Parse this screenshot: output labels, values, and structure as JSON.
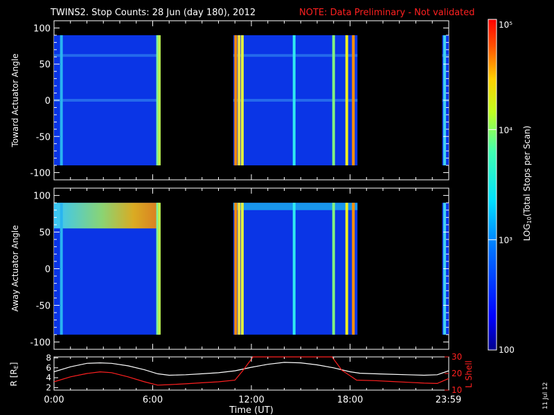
{
  "title": {
    "main": "TWINS2. Stop Counts: 28 Jun (day 180), 2012",
    "note": "NOTE: Data Preliminary - Not validated",
    "note_color": "#ff2020"
  },
  "side_date": "11 Jul 12",
  "colorbar": {
    "label": "LOG10(Total Stops per Scan)",
    "label_base": "LOG",
    "label_sub": "10",
    "label_rest": "(Total Stops per Scan)",
    "tick_labels": [
      "100",
      "10³",
      "10⁴",
      "10⁵"
    ],
    "tick_values": [
      100,
      1000,
      10000,
      100000
    ],
    "scale": "log"
  },
  "chart_data": [
    {
      "type": "heatmap",
      "panel": "toward",
      "ylabel": "Toward Actuator Angle",
      "ylim": [
        -110,
        110
      ],
      "yticks": [
        "100",
        "50",
        "0",
        "-50",
        "-100"
      ],
      "xlim_hours": [
        0,
        24
      ],
      "data_segments_hours": [
        [
          0,
          6.45
        ],
        [
          10.9,
          18.45
        ],
        [
          23.6,
          24
        ]
      ],
      "y_extent": [
        -90,
        90
      ],
      "background": "#0a35e6",
      "bright_columns": [
        {
          "t": 0.45,
          "color": "#2ab4f0"
        },
        {
          "t": 6.3,
          "color": "#7cf0a0"
        },
        {
          "t": 6.4,
          "color": "#b8f050"
        },
        {
          "t": 11.05,
          "color": "#ff8c00"
        },
        {
          "t": 11.25,
          "color": "#f0e040"
        },
        {
          "t": 11.45,
          "color": "#e0f040"
        },
        {
          "t": 14.6,
          "color": "#30e8f0"
        },
        {
          "t": 17.0,
          "color": "#80f080"
        },
        {
          "t": 17.8,
          "color": "#f0f020"
        },
        {
          "t": 18.2,
          "color": "#ff9000"
        },
        {
          "t": 23.75,
          "color": "#40d0f0"
        }
      ],
      "horizontal_bands": [
        {
          "angle": 62,
          "color": "#2a78ee"
        },
        {
          "angle": 0,
          "color": "#2a78ee"
        }
      ]
    },
    {
      "type": "heatmap",
      "panel": "away",
      "ylabel": "Away Actuator Angle",
      "ylim": [
        -110,
        110
      ],
      "yticks": [
        "100",
        "50",
        "0",
        "-50",
        "-100"
      ],
      "xlim_hours": [
        0,
        24
      ],
      "data_segments_hours": [
        [
          0,
          6.45
        ],
        [
          10.9,
          18.45
        ],
        [
          23.6,
          24
        ]
      ],
      "y_extent": [
        -90,
        90
      ],
      "background": "#0a35e6",
      "top_band": {
        "angle_range": [
          55,
          90
        ],
        "hot_max_hours": [
          4.5,
          6.3
        ],
        "hot_color": "#ff8800"
      },
      "bright_columns": [
        {
          "t": 0.45,
          "color": "#2ab4f0"
        },
        {
          "t": 6.3,
          "color": "#7cf0a0"
        },
        {
          "t": 6.4,
          "color": "#b8f050"
        },
        {
          "t": 11.05,
          "color": "#ff8c00"
        },
        {
          "t": 11.25,
          "color": "#f0e040"
        },
        {
          "t": 11.45,
          "color": "#e0f040"
        },
        {
          "t": 14.6,
          "color": "#30e8f0"
        },
        {
          "t": 17.0,
          "color": "#80f080"
        },
        {
          "t": 17.8,
          "color": "#f0f020"
        },
        {
          "t": 18.2,
          "color": "#ff9000"
        },
        {
          "t": 23.75,
          "color": "#40d0f0"
        }
      ]
    },
    {
      "type": "line",
      "panel": "orbit",
      "xlabel": "Time (UT)",
      "xticks": [
        "0:00",
        "6:00",
        "12:00",
        "18:00",
        "23:59"
      ],
      "xtick_hours": [
        0,
        6,
        12,
        18,
        23.98
      ],
      "left_axis": {
        "label": "R [RE]",
        "label_base": "R [R",
        "label_sub": "E",
        "label_end": "]",
        "ylim": [
          1.5,
          8.2
        ],
        "yticks": [
          "8",
          "6",
          "4",
          "2"
        ],
        "color": "#ffffff"
      },
      "right_axis": {
        "label": "L Shell",
        "ylim": [
          10,
          30
        ],
        "yticks": [
          "30",
          "20",
          "10"
        ],
        "color": "#ff2020"
      },
      "series": [
        {
          "axis": "left",
          "color": "#ffffff",
          "x": [
            0,
            1,
            2,
            2.8,
            3.5,
            4.5,
            5.5,
            6.3,
            7,
            8,
            9,
            10,
            11,
            12,
            13,
            14,
            15,
            16,
            17,
            18,
            18.6,
            19.5,
            20.5,
            21.5,
            22.5,
            23.3,
            24
          ],
          "y": [
            5.2,
            6.2,
            6.9,
            7.0,
            6.9,
            6.4,
            5.6,
            4.8,
            4.5,
            4.6,
            4.8,
            5.0,
            5.4,
            6.1,
            6.7,
            7.1,
            7.0,
            6.6,
            6.0,
            5.2,
            4.9,
            4.8,
            4.7,
            4.6,
            4.5,
            4.6,
            5.4
          ]
        },
        {
          "axis": "right",
          "color": "#ff2020",
          "x": [
            0,
            1,
            2,
            2.8,
            3.5,
            4.5,
            5.5,
            6.3,
            7,
            8,
            9,
            10,
            11,
            11.5,
            12.1,
            16.9,
            17.5,
            18.4,
            19.5,
            20.5,
            21.5,
            22.5,
            23.3,
            24
          ],
          "y": [
            15,
            18,
            20,
            21,
            20.5,
            18,
            15,
            13,
            13.3,
            13.8,
            14.4,
            15,
            16,
            22,
            30,
            30,
            22,
            16,
            15.7,
            15.2,
            14.7,
            14.2,
            14,
            17
          ]
        }
      ]
    }
  ]
}
